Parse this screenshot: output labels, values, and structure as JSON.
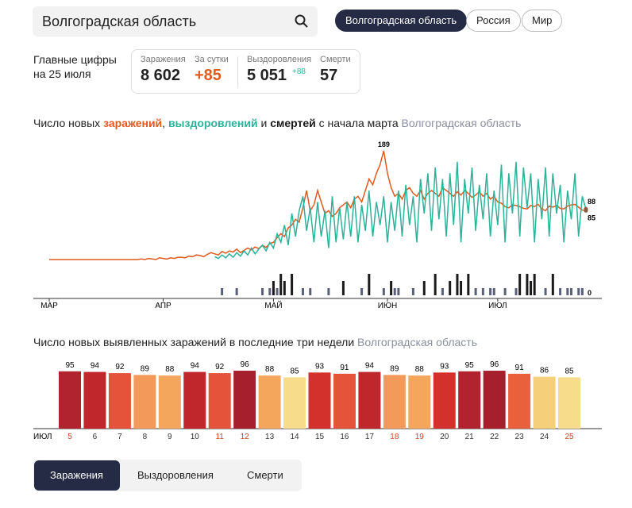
{
  "search": {
    "text": "Волгоградская область"
  },
  "region_tabs": [
    "Волгоградская область",
    "Россия",
    "Мир"
  ],
  "summary": {
    "heading": [
      "Главные цифры",
      "на 25 июля"
    ],
    "stats": [
      {
        "label": "Заражения",
        "value": "8 602"
      },
      {
        "label": "За сутки",
        "value": "+85"
      },
      {
        "label": "Выздоровления",
        "value": "5 051",
        "delta": "+88"
      },
      {
        "label": "Смерти",
        "value": "57"
      }
    ]
  },
  "bottom_tabs": [
    "Заражения",
    "Выздоровления",
    "Смерти"
  ],
  "chart_data": [
    {
      "type": "line",
      "title_start": "Число новых ",
      "title_joins": [
        ", ",
        " и "
      ],
      "title_end": " с начала марта",
      "subtitle": "Волгоградская область",
      "categories": [
        "МАР",
        null,
        null,
        null,
        null,
        null,
        null,
        null,
        null,
        null,
        null,
        null,
        null,
        null,
        null,
        null,
        null,
        null,
        null,
        null,
        null,
        null,
        null,
        null,
        null,
        null,
        null,
        null,
        null,
        null,
        null,
        "АПР",
        null,
        null,
        null,
        null,
        null,
        null,
        null,
        null,
        null,
        null,
        null,
        null,
        null,
        null,
        null,
        null,
        null,
        null,
        null,
        null,
        null,
        null,
        null,
        null,
        null,
        null,
        null,
        null,
        null,
        "МАЙ",
        null,
        null,
        null,
        null,
        null,
        null,
        null,
        null,
        null,
        null,
        null,
        null,
        null,
        null,
        null,
        null,
        null,
        null,
        null,
        null,
        null,
        null,
        null,
        null,
        null,
        null,
        null,
        null,
        null,
        null,
        "ИЮН",
        null,
        null,
        null,
        null,
        null,
        null,
        null,
        null,
        null,
        null,
        null,
        null,
        null,
        null,
        null,
        null,
        null,
        null,
        null,
        null,
        null,
        null,
        null,
        null,
        null,
        null,
        null,
        null,
        null,
        "ИЮЛ",
        null,
        null,
        null,
        null,
        null,
        null,
        null,
        null,
        null,
        null,
        null,
        null,
        null,
        null,
        null,
        null,
        null,
        null,
        null,
        null,
        null,
        null,
        null,
        null
      ],
      "ylim": [
        0,
        200
      ],
      "y2lim": [
        0,
        3
      ],
      "series": [
        {
          "name": "заражений",
          "color": "#e05a1e",
          "values": [
            0,
            0,
            0,
            0,
            0,
            0,
            0,
            0,
            0,
            0,
            0,
            0,
            0,
            0,
            0,
            0,
            0,
            0,
            0,
            0,
            0,
            0,
            0,
            0,
            0,
            1,
            0,
            2,
            1,
            0,
            3,
            2,
            1,
            3,
            2,
            4,
            4,
            3,
            6,
            5,
            8,
            7,
            5,
            9,
            12,
            10,
            8,
            14,
            11,
            15,
            13,
            18,
            12,
            16,
            20,
            17,
            22,
            19,
            25,
            21,
            28,
            30,
            38,
            45,
            40,
            55,
            60,
            70,
            65,
            90,
            120,
            85,
            95,
            120,
            100,
            80,
            85,
            75,
            80,
            90,
            95,
            100,
            90,
            105,
            110,
            100,
            120,
            140,
            130,
            150,
            165,
            189,
            150,
            125,
            110,
            115,
            105,
            120,
            125,
            115,
            110,
            120,
            105,
            115,
            120,
            115,
            110,
            125,
            120,
            115,
            110,
            118,
            112,
            120,
            115,
            108,
            112,
            118,
            110,
            115,
            105,
            110,
            100,
            98,
            92,
            90,
            95,
            94,
            92,
            89,
            88,
            94,
            92,
            96,
            88,
            85,
            93,
            91,
            94,
            89,
            88,
            93,
            95,
            96,
            91,
            86,
            85
          ]
        },
        {
          "name": "выздоровлений",
          "color": "#2bb39a",
          "values": [
            null,
            null,
            null,
            null,
            null,
            null,
            null,
            null,
            null,
            null,
            null,
            null,
            null,
            null,
            null,
            null,
            null,
            null,
            null,
            null,
            null,
            null,
            null,
            null,
            null,
            null,
            null,
            null,
            null,
            null,
            null,
            null,
            null,
            null,
            null,
            null,
            null,
            null,
            null,
            null,
            null,
            null,
            null,
            null,
            null,
            5,
            2,
            8,
            3,
            10,
            4,
            12,
            6,
            15,
            8,
            20,
            10,
            18,
            25,
            15,
            30,
            20,
            45,
            30,
            60,
            25,
            80,
            40,
            85,
            110,
            50,
            90,
            30,
            100,
            40,
            85,
            20,
            110,
            30,
            90,
            35,
            100,
            40,
            110,
            30,
            95,
            50,
            120,
            40,
            100,
            60,
            110,
            30,
            100,
            50,
            120,
            40,
            130,
            60,
            110,
            30,
            140,
            80,
            150,
            50,
            160,
            70,
            140,
            40,
            150,
            60,
            170,
            30,
            140,
            80,
            160,
            50,
            130,
            70,
            150,
            40,
            120,
            60,
            165,
            30,
            150,
            80,
            170,
            40,
            160,
            90,
            150,
            30,
            140,
            70,
            160,
            40,
            150,
            80,
            130,
            30,
            120,
            70,
            150,
            40,
            110,
            88
          ]
        },
        {
          "name": "смертей",
          "color": "#1a1a1a",
          "type": "bar",
          "axis": "y2",
          "values": [
            0,
            0,
            0,
            0,
            0,
            0,
            0,
            0,
            0,
            0,
            0,
            0,
            0,
            0,
            0,
            0,
            0,
            0,
            0,
            0,
            0,
            0,
            0,
            0,
            0,
            0,
            0,
            0,
            0,
            0,
            0,
            0,
            0,
            0,
            0,
            0,
            0,
            0,
            0,
            0,
            0,
            0,
            0,
            0,
            0,
            0,
            0,
            1,
            0,
            0,
            0,
            1,
            0,
            0,
            0,
            0,
            0,
            0,
            1,
            0,
            1,
            2,
            1,
            3,
            2,
            0,
            3,
            0,
            0,
            1,
            0,
            1,
            0,
            0,
            0,
            0,
            1,
            0,
            0,
            0,
            2,
            0,
            0,
            0,
            0,
            1,
            0,
            3,
            0,
            0,
            0,
            1,
            0,
            2,
            1,
            1,
            0,
            0,
            0,
            1,
            0,
            0,
            2,
            0,
            0,
            3,
            0,
            1,
            0,
            2,
            0,
            3,
            2,
            0,
            3,
            0,
            1,
            0,
            1,
            0,
            1,
            1,
            0,
            0,
            1,
            0,
            0,
            1,
            3,
            0,
            3,
            2,
            3,
            0,
            0,
            1,
            0,
            3,
            0,
            1,
            0,
            1,
            1,
            0,
            1,
            1,
            0
          ]
        }
      ]
    },
    {
      "type": "bar",
      "title": "Число новых выявленных заражений в последние три недели",
      "subtitle": "Волгоградская область",
      "xlabel": "ИЮЛ",
      "categories": [
        "5",
        "6",
        "7",
        "8",
        "9",
        "10",
        "11",
        "12",
        "13",
        "14",
        "15",
        "16",
        "17",
        "18",
        "19",
        "20",
        "21",
        "22",
        "23",
        "24",
        "25"
      ],
      "category_colors": [
        "#d0442a",
        "#333",
        "#333",
        "#333",
        "#333",
        "#333",
        "#d0442a",
        "#d0442a",
        "#333",
        "#333",
        "#333",
        "#333",
        "#333",
        "#d0442a",
        "#d0442a",
        "#333",
        "#333",
        "#333",
        "#333",
        "#333",
        "#d0442a"
      ],
      "values": [
        95,
        94,
        92,
        89,
        88,
        94,
        92,
        96,
        88,
        85,
        93,
        91,
        94,
        89,
        88,
        93,
        95,
        96,
        91,
        86,
        85
      ],
      "colors": [
        "#b0232f",
        "#c0272d",
        "#e5543a",
        "#f39a5b",
        "#f4a65c",
        "#c0272d",
        "#e5543a",
        "#a51f2d",
        "#f4a65c",
        "#f7dc8b",
        "#d3322c",
        "#e5543a",
        "#c0272d",
        "#f39a5b",
        "#f4a65c",
        "#d3322c",
        "#b0232f",
        "#a51f2d",
        "#e8603c",
        "#f6cf7a",
        "#f7dc8b"
      ],
      "ylim": [
        0,
        100
      ]
    }
  ]
}
